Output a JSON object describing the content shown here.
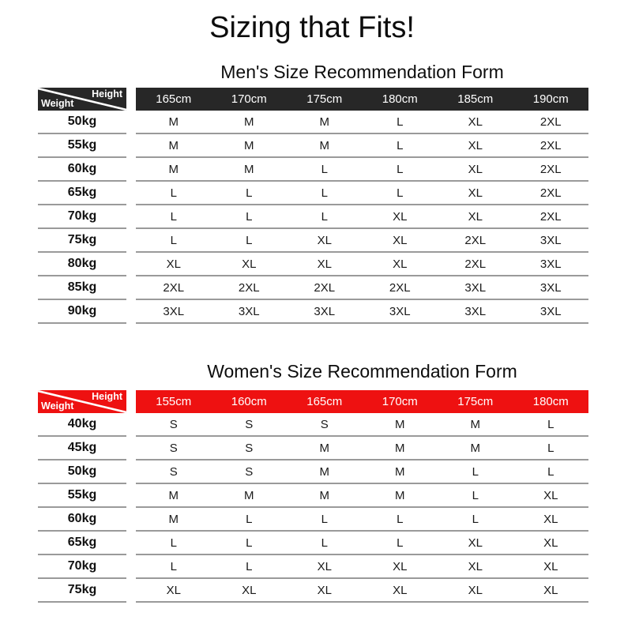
{
  "page": {
    "title": "Sizing that Fits!"
  },
  "colors": {
    "men_header": "#272727",
    "women_header": "#ee1111",
    "grid_line": "#9a9a9a",
    "header_text": "#ffffff",
    "body_text": "#111111"
  },
  "tables": [
    {
      "id": "men",
      "heading": "Men's Size Recommendation Form",
      "header_color": "#272727",
      "corner": {
        "top_label": "Height",
        "bottom_label": "Weight"
      },
      "columns": [
        "165cm",
        "170cm",
        "175cm",
        "180cm",
        "185cm",
        "190cm"
      ],
      "rows": [
        {
          "weight": "50kg",
          "sizes": [
            "M",
            "M",
            "M",
            "L",
            "XL",
            "2XL"
          ]
        },
        {
          "weight": "55kg",
          "sizes": [
            "M",
            "M",
            "M",
            "L",
            "XL",
            "2XL"
          ]
        },
        {
          "weight": "60kg",
          "sizes": [
            "M",
            "M",
            "L",
            "L",
            "XL",
            "2XL"
          ]
        },
        {
          "weight": "65kg",
          "sizes": [
            "L",
            "L",
            "L",
            "L",
            "XL",
            "2XL"
          ]
        },
        {
          "weight": "70kg",
          "sizes": [
            "L",
            "L",
            "L",
            "XL",
            "XL",
            "2XL"
          ]
        },
        {
          "weight": "75kg",
          "sizes": [
            "L",
            "L",
            "XL",
            "XL",
            "2XL",
            "3XL"
          ]
        },
        {
          "weight": "80kg",
          "sizes": [
            "XL",
            "XL",
            "XL",
            "XL",
            "2XL",
            "3XL"
          ]
        },
        {
          "weight": "85kg",
          "sizes": [
            "2XL",
            "2XL",
            "2XL",
            "2XL",
            "3XL",
            "3XL"
          ]
        },
        {
          "weight": "90kg",
          "sizes": [
            "3XL",
            "3XL",
            "3XL",
            "3XL",
            "3XL",
            "3XL"
          ]
        }
      ]
    },
    {
      "id": "women",
      "heading": "Women's Size Recommendation Form",
      "header_color": "#ee1111",
      "corner": {
        "top_label": "Height",
        "bottom_label": "Weight"
      },
      "columns": [
        "155cm",
        "160cm",
        "165cm",
        "170cm",
        "175cm",
        "180cm"
      ],
      "rows": [
        {
          "weight": "40kg",
          "sizes": [
            "S",
            "S",
            "S",
            "M",
            "M",
            "L"
          ]
        },
        {
          "weight": "45kg",
          "sizes": [
            "S",
            "S",
            "M",
            "M",
            "M",
            "L"
          ]
        },
        {
          "weight": "50kg",
          "sizes": [
            "S",
            "S",
            "M",
            "M",
            "L",
            "L"
          ]
        },
        {
          "weight": "55kg",
          "sizes": [
            "M",
            "M",
            "M",
            "M",
            "L",
            "XL"
          ]
        },
        {
          "weight": "60kg",
          "sizes": [
            "M",
            "L",
            "L",
            "L",
            "L",
            "XL"
          ]
        },
        {
          "weight": "65kg",
          "sizes": [
            "L",
            "L",
            "L",
            "L",
            "XL",
            "XL"
          ]
        },
        {
          "weight": "70kg",
          "sizes": [
            "L",
            "L",
            "XL",
            "XL",
            "XL",
            "XL"
          ]
        },
        {
          "weight": "75kg",
          "sizes": [
            "XL",
            "XL",
            "XL",
            "XL",
            "XL",
            "XL"
          ]
        }
      ]
    }
  ]
}
